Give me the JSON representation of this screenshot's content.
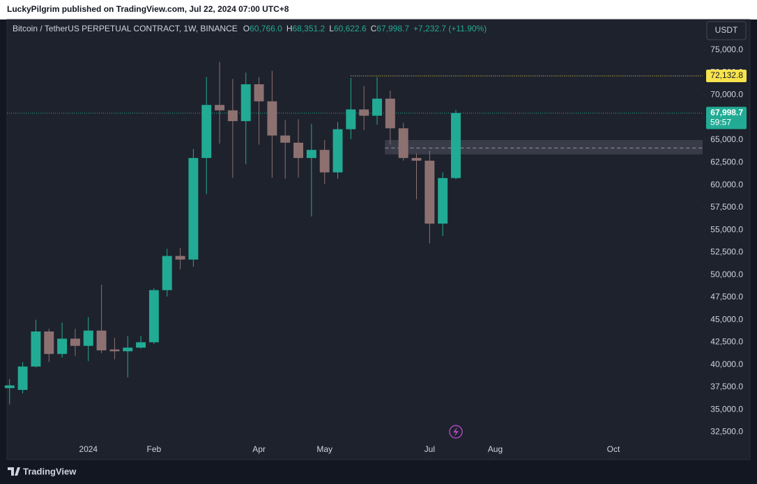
{
  "header": "LuckyPilgrim published on TradingView.com, Jul 22, 2024 07:00 UTC+8",
  "footer": "TradingView",
  "chart_data": {
    "type": "candlestick",
    "title": "Bitcoin / TetherUS PERPETUAL CONTRACT, 1W, BINANCE",
    "ohlc_legend": [
      {
        "key": "O",
        "label": "60,766.0"
      },
      {
        "key": "H",
        "label": "68,351.2"
      },
      {
        "key": "L",
        "label": "60,622.6"
      },
      {
        "key": "C",
        "label": "67,998.7"
      }
    ],
    "change": "+7,232.7 (+11.90%)",
    "currency": "USDT",
    "up_color": "#22ab94",
    "down_color": "#8d7171",
    "x": [
      0,
      1,
      2,
      3,
      4,
      5,
      6,
      7,
      8,
      9,
      10,
      11,
      12,
      13,
      14,
      15,
      16,
      17,
      18,
      19,
      20,
      21,
      22,
      23,
      24,
      25,
      26,
      27,
      28,
      29,
      30,
      31,
      32,
      33,
      34
    ],
    "open": [
      37400,
      37200,
      39800,
      43700,
      41200,
      42900,
      42100,
      43800,
      41700,
      41500,
      41900,
      42500,
      48300,
      52100,
      51700,
      63000,
      68900,
      68300,
      67100,
      71200,
      69300,
      65500,
      64700,
      63000,
      63900,
      61400,
      66200,
      68400,
      67700,
      69600,
      66300,
      63000,
      62700,
      55700,
      60766
    ],
    "high": [
      38400,
      40300,
      45000,
      44000,
      44700,
      44000,
      45300,
      48900,
      43000,
      43200,
      43200,
      48500,
      52900,
      53000,
      64000,
      72000,
      73700,
      71800,
      72500,
      72000,
      72700,
      67200,
      67300,
      66800,
      65000,
      67000,
      71900,
      71000,
      72000,
      70500,
      66900,
      63500,
      63800,
      61400,
      68351.2
    ],
    "low": [
      35600,
      36800,
      39700,
      40300,
      40800,
      41000,
      40400,
      41300,
      40600,
      38600,
      41800,
      42300,
      47600,
      50600,
      50900,
      59000,
      64600,
      60800,
      62300,
      64500,
      60800,
      60700,
      60800,
      56500,
      60100,
      60700,
      65100,
      66100,
      66700,
      64500,
      62700,
      58400,
      53500,
      54300,
      60622.6
    ],
    "close": [
      37700,
      39800,
      43700,
      41200,
      42900,
      42100,
      43800,
      41600,
      41500,
      41900,
      42500,
      48300,
      52100,
      51700,
      63000,
      68900,
      68300,
      67100,
      71200,
      69300,
      65500,
      64700,
      63000,
      63900,
      61400,
      66200,
      68400,
      67700,
      69600,
      66300,
      63000,
      62700,
      55700,
      60766,
      67998.7
    ],
    "xlim": [
      -0.2,
      52.8
    ],
    "xticks": [
      {
        "value": 6,
        "label": "2024"
      },
      {
        "value": 11,
        "label": "Feb"
      },
      {
        "value": 19,
        "label": "Apr"
      },
      {
        "value": 24,
        "label": "May"
      },
      {
        "value": 32,
        "label": "Jul"
      },
      {
        "value": 37,
        "label": "Aug"
      },
      {
        "value": 46,
        "label": "Oct"
      }
    ],
    "ylim": [
      29600,
      78250
    ],
    "yticks": [
      {
        "value": 32500,
        "label": "32,500.0"
      },
      {
        "value": 35000,
        "label": "35,000.0"
      },
      {
        "value": 37500,
        "label": "37,500.0"
      },
      {
        "value": 40000,
        "label": "40,000.0"
      },
      {
        "value": 42500,
        "label": "42,500.0"
      },
      {
        "value": 45000,
        "label": "45,000.0"
      },
      {
        "value": 47500,
        "label": "47,500.0"
      },
      {
        "value": 50000,
        "label": "50,000.0"
      },
      {
        "value": 52500,
        "label": "52,500.0"
      },
      {
        "value": 55000,
        "label": "55,000.0"
      },
      {
        "value": 57500,
        "label": "57,500.0"
      },
      {
        "value": 60000,
        "label": "60,000.0"
      },
      {
        "value": 62500,
        "label": "62,500.0"
      },
      {
        "value": 65000,
        "label": "65,000.0"
      },
      {
        "value": 67500,
        "label": "67,500.0"
      },
      {
        "value": 70000,
        "label": "70,000.0"
      },
      {
        "value": 72500,
        "label": "72,500.0"
      },
      {
        "value": 75000,
        "label": "75,000.0"
      }
    ],
    "high_line": {
      "value": 72132.8,
      "label": "72,132.8",
      "start": 26,
      "color": "#f7e34d"
    },
    "last_price": {
      "value": 67998.7,
      "label": "67,998.7",
      "countdown": "59:57"
    },
    "zone": {
      "from": 63400,
      "to": 65000,
      "level": 64100,
      "start": 28.6
    }
  }
}
